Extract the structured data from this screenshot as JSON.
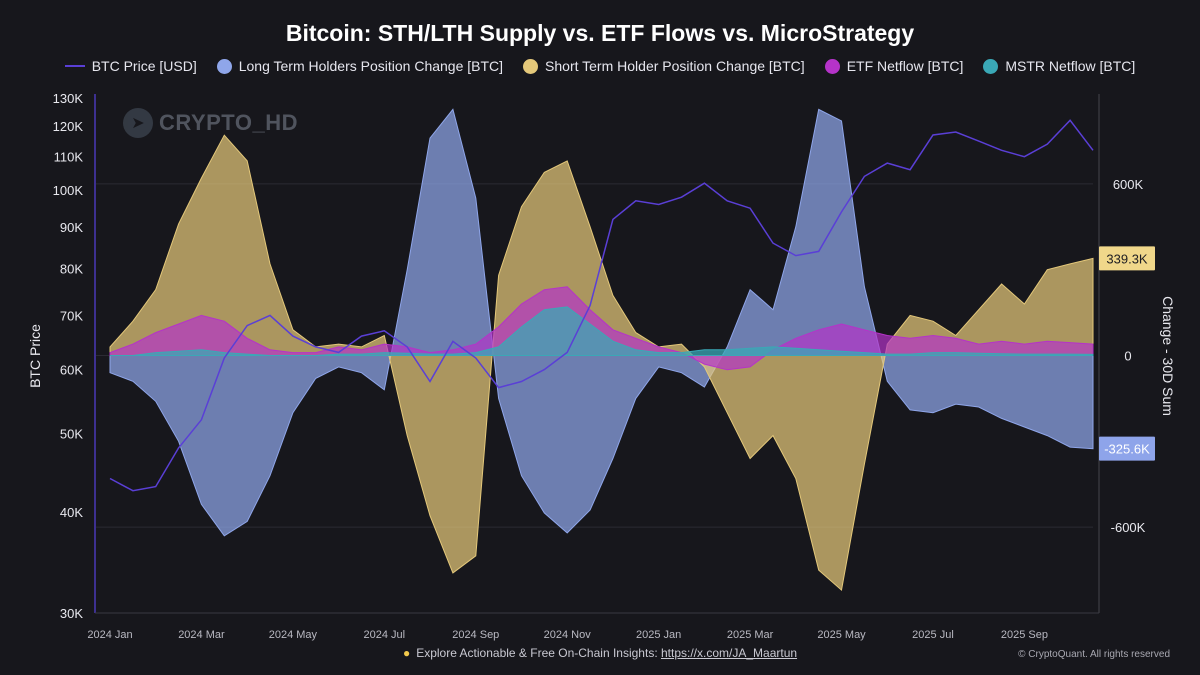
{
  "colors": {
    "price": "#5a3fd6",
    "lth": "#8fa6ea",
    "sth": "#e4c87a",
    "etf": "#b533c9",
    "mstr": "#3aa8b6",
    "background": "#17171c",
    "grid": "#2b2b33",
    "label_pos_bg": "#f0d78a",
    "label_neg_bg": "#8ea4ea"
  },
  "legend": {
    "price": "BTC Price [USD]",
    "lth": "Long Term Holders Position Change [BTC]",
    "sth": "Short Term Holder Position Change [BTC]",
    "etf": "ETF Netflow [BTC]",
    "mstr": "MSTR Netflow [BTC]"
  },
  "watermark": {
    "text": "CRYPTO_HD",
    "icon": "telegram-icon"
  },
  "footer": {
    "text": "Explore Actionable & Free On-Chain Insights: ",
    "link": "https://x.com/JA_Maartun",
    "icon": "lightbulb-icon",
    "copyright": "© CryptoQuant. All rights reserved"
  },
  "chart_data": {
    "type": "area",
    "title": "Bitcoin: STH/LTH Supply vs. ETF Flows vs. MicroStrategy",
    "y_left_label": "BTC Price",
    "y_right_label": "Change - 30D Sum",
    "y_left_scale": "log",
    "y_left_range": [
      30000,
      130000
    ],
    "y_left_ticks": [
      {
        "value": 30000,
        "label": "30K"
      },
      {
        "value": 40000,
        "label": "40K"
      },
      {
        "value": 50000,
        "label": "50K"
      },
      {
        "value": 60000,
        "label": "60K"
      },
      {
        "value": 70000,
        "label": "70K"
      },
      {
        "value": 80000,
        "label": "80K"
      },
      {
        "value": 90000,
        "label": "90K"
      },
      {
        "value": 100000,
        "label": "100K"
      },
      {
        "value": 110000,
        "label": "110K"
      },
      {
        "value": 120000,
        "label": "120K"
      },
      {
        "value": 130000,
        "label": "130K"
      }
    ],
    "y_right_range": [
      -900000,
      900000
    ],
    "y_right_ticks": [
      {
        "value": 600000,
        "label": "600K"
      },
      {
        "value": 0,
        "label": "0"
      },
      {
        "value": -600000,
        "label": "-600K"
      }
    ],
    "x_ticks": [
      "2024 Jan",
      "2024 Mar",
      "2024 May",
      "2024 Jul",
      "2024 Sep",
      "2024 Nov",
      "2025 Jan",
      "2025 Mar",
      "2025 May",
      "2025 Jul",
      "2025 Sep"
    ],
    "last_value_labels": {
      "sth": "339.3K",
      "lth": "-325.6K"
    },
    "grid": true,
    "legend_position": "top",
    "x_months": [
      0,
      0.5,
      1,
      1.5,
      2,
      2.5,
      3,
      3.5,
      4,
      4.5,
      5,
      5.5,
      6,
      6.5,
      7,
      7.5,
      8,
      8.5,
      9,
      9.5,
      10,
      10.5,
      11,
      11.5,
      12,
      12.5,
      13,
      13.5,
      14,
      14.5,
      15,
      15.5,
      16,
      16.5,
      17,
      17.5,
      18,
      18.5,
      19,
      19.5,
      20,
      20.5,
      21,
      21.5
    ],
    "series": [
      {
        "name": "BTC Price [USD]",
        "key": "price",
        "axis": "left",
        "values": [
          44000,
          42500,
          43000,
          48000,
          52000,
          62000,
          68000,
          70000,
          66000,
          64000,
          63000,
          66000,
          67000,
          64000,
          58000,
          65000,
          62000,
          57000,
          58000,
          60000,
          63000,
          72000,
          92000,
          97000,
          96000,
          98000,
          102000,
          97000,
          95000,
          86000,
          83000,
          84000,
          94000,
          104000,
          108000,
          106000,
          117000,
          118000,
          115000,
          112000,
          110000,
          114000,
          122000,
          112000
        ]
      },
      {
        "name": "Long Term Holders Position Change [BTC]",
        "key": "lth",
        "axis": "right",
        "values": [
          -60000,
          -90000,
          -160000,
          -300000,
          -520000,
          -630000,
          -580000,
          -420000,
          -200000,
          -80000,
          -40000,
          -60000,
          -120000,
          300000,
          760000,
          860000,
          550000,
          -150000,
          -420000,
          -550000,
          -620000,
          -540000,
          -360000,
          -150000,
          -40000,
          -60000,
          -110000,
          30000,
          230000,
          160000,
          450000,
          860000,
          820000,
          240000,
          -90000,
          -190000,
          -200000,
          -170000,
          -180000,
          -220000,
          -250000,
          -280000,
          -320000,
          -325600
        ]
      },
      {
        "name": "Short Term Holder Position Change [BTC]",
        "key": "sth",
        "axis": "right",
        "values": [
          30000,
          120000,
          230000,
          460000,
          620000,
          770000,
          680000,
          320000,
          90000,
          30000,
          40000,
          30000,
          70000,
          -280000,
          -560000,
          -760000,
          -700000,
          280000,
          520000,
          640000,
          680000,
          450000,
          210000,
          80000,
          30000,
          40000,
          -40000,
          -200000,
          -360000,
          -280000,
          -430000,
          -750000,
          -820000,
          -380000,
          40000,
          140000,
          120000,
          70000,
          160000,
          250000,
          180000,
          300000,
          320000,
          339300
        ]
      },
      {
        "name": "ETF Netflow [BTC]",
        "key": "etf",
        "axis": "right",
        "values": [
          10000,
          40000,
          80000,
          110000,
          140000,
          120000,
          60000,
          20000,
          10000,
          10000,
          30000,
          20000,
          40000,
          30000,
          10000,
          20000,
          40000,
          100000,
          180000,
          230000,
          240000,
          160000,
          90000,
          60000,
          30000,
          10000,
          -30000,
          -50000,
          -40000,
          20000,
          60000,
          90000,
          110000,
          90000,
          70000,
          60000,
          70000,
          60000,
          40000,
          50000,
          40000,
          50000,
          45000,
          40000
        ]
      },
      {
        "name": "MSTR Netflow [BTC]",
        "key": "mstr",
        "axis": "right",
        "values": [
          0,
          0,
          10000,
          15000,
          20000,
          10000,
          5000,
          0,
          0,
          0,
          5000,
          5000,
          10000,
          8000,
          5000,
          5000,
          10000,
          30000,
          100000,
          160000,
          170000,
          110000,
          50000,
          20000,
          10000,
          10000,
          20000,
          20000,
          25000,
          30000,
          25000,
          20000,
          15000,
          10000,
          5000,
          5000,
          10000,
          10000,
          8000,
          6000,
          5000,
          5000,
          5000,
          4000
        ]
      }
    ]
  }
}
